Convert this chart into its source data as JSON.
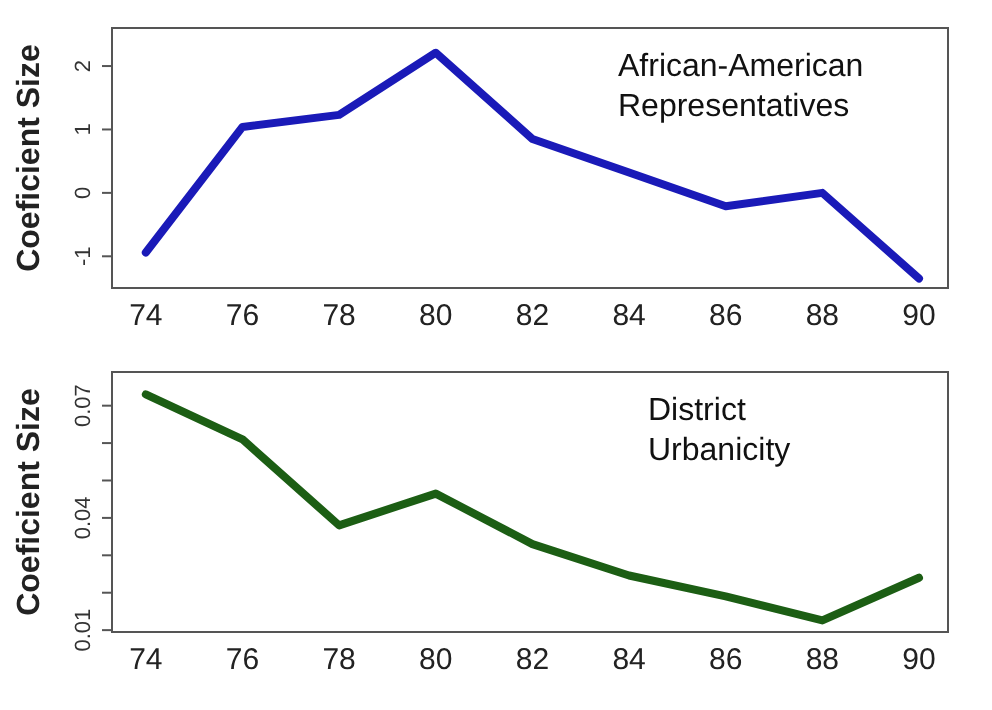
{
  "chart_data": [
    {
      "type": "line",
      "ylabel": "Coeficient Size",
      "x": [
        74,
        76,
        78,
        80,
        82,
        84,
        86,
        88,
        90
      ],
      "xlim": [
        73.3,
        90.6
      ],
      "xticks": [
        74,
        76,
        78,
        80,
        82,
        84,
        86,
        88,
        90
      ],
      "ylim": [
        -1.5,
        2.6
      ],
      "yticks": [
        -1,
        0,
        1,
        2
      ],
      "grid": false,
      "legend": false,
      "marker": "none",
      "line_style": "solid",
      "annotations": [
        "African-American Representatives"
      ],
      "series": [
        {
          "color": "#1a1ab8",
          "values": [
            -0.94,
            1.04,
            1.23,
            2.21,
            0.85,
            0.32,
            -0.21,
            0.0,
            -1.35
          ]
        }
      ]
    },
    {
      "type": "line",
      "ylabel": "Coeficient Size",
      "x": [
        74,
        76,
        78,
        80,
        82,
        84,
        86,
        88,
        90
      ],
      "xlim": [
        73.3,
        90.6
      ],
      "xticks": [
        74,
        76,
        78,
        80,
        82,
        84,
        86,
        88,
        90
      ],
      "ylim": [
        0.0095,
        0.079
      ],
      "yticks": [
        0.01,
        {
          "value": 0.02,
          "label": null
        },
        {
          "value": 0.03,
          "label": null
        },
        0.04,
        {
          "value": 0.05,
          "label": null
        },
        {
          "value": 0.06,
          "label": null
        },
        0.07
      ],
      "grid": false,
      "legend": false,
      "marker": "none",
      "line_style": "solid",
      "annotations": [
        "District Urbanicity"
      ],
      "series": [
        {
          "color": "#1c5e14",
          "values": [
            0.073,
            0.061,
            0.038,
            0.0465,
            0.033,
            0.0246,
            0.019,
            0.0126,
            0.024
          ]
        }
      ]
    }
  ]
}
